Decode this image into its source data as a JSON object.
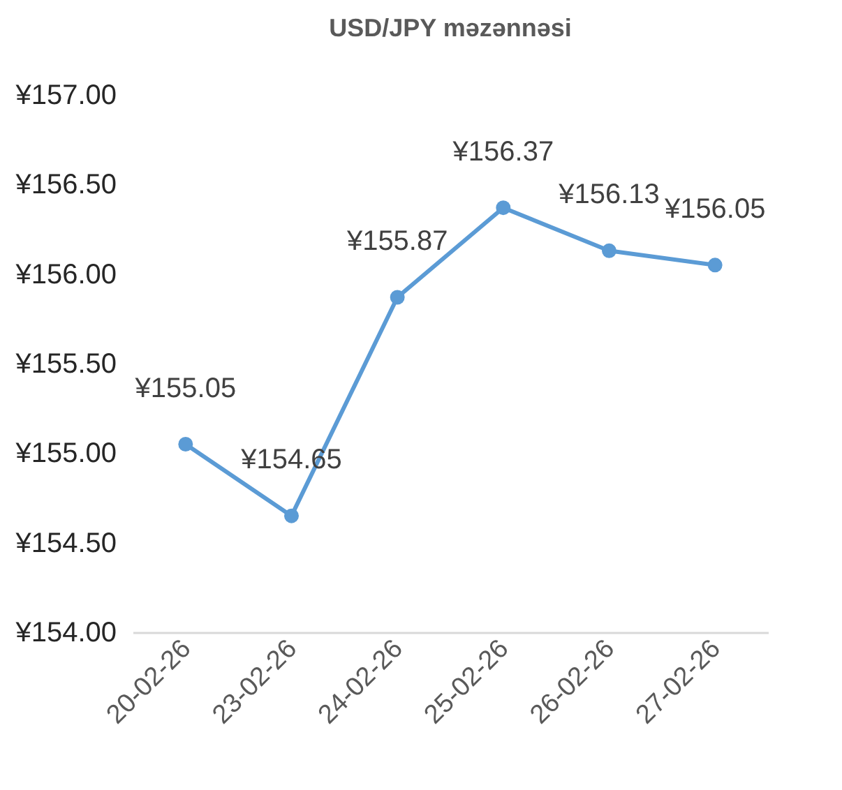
{
  "chart_data": {
    "type": "line",
    "title": "USD/JPY məzənnəsi",
    "categories": [
      "20-02-26",
      "23-02-26",
      "24-02-26",
      "25-02-26",
      "26-02-26",
      "27-02-26"
    ],
    "series": [
      {
        "color": "#5b9bd5",
        "values": [
          155.05,
          154.65,
          155.87,
          156.37,
          156.13,
          156.05
        ],
        "value_labels": [
          "¥155.05",
          "¥154.65",
          "¥155.87",
          "¥156.37",
          "¥156.13",
          "¥156.05"
        ]
      }
    ],
    "ylim": [
      154,
      157
    ],
    "yticks": [
      {
        "value": 154,
        "label": "¥154.00"
      },
      {
        "value": 154.5,
        "label": "¥154.50"
      },
      {
        "value": 155,
        "label": "¥155.00"
      },
      {
        "value": 155.5,
        "label": "¥155.50"
      },
      {
        "value": 156,
        "label": "¥156.00"
      },
      {
        "value": 156.5,
        "label": "¥156.50"
      },
      {
        "value": 157,
        "label": "¥157.00"
      }
    ],
    "grid": false,
    "marker": "circle",
    "line_style": "solid"
  }
}
